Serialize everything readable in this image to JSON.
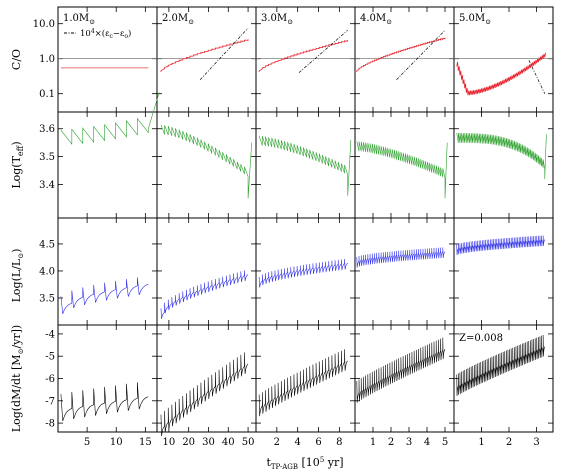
{
  "figure": {
    "xlabel": "t",
    "xlabel_sub": "TP-AGB",
    "xlabel_units": "[10",
    "xlabel_exp": "5",
    "xlabel_tail": " yr]"
  },
  "colors": {
    "co": "#e8202a",
    "co_15": "#f08080",
    "teff": "#2ca02c",
    "lum": "#2a2ae8",
    "mdot": "#000000",
    "eps": "#000000",
    "ref_line": "#666666"
  },
  "columns": [
    {
      "mass": "1.0",
      "ticks": [
        5,
        10,
        15
      ],
      "xlim": [
        0,
        17
      ]
    },
    {
      "mass": "2.0",
      "ticks": [
        10,
        20,
        30,
        40,
        50
      ],
      "xlim": [
        4,
        54
      ]
    },
    {
      "mass": "3.0",
      "ticks": [
        2,
        4,
        6,
        8
      ],
      "xlim": [
        0,
        9.5
      ]
    },
    {
      "mass": "4.0",
      "ticks": [
        1,
        2,
        3,
        4,
        5
      ],
      "xlim": [
        0,
        5.5
      ]
    },
    {
      "mass": "5.0",
      "ticks": [
        1,
        2,
        3
      ],
      "xlim": [
        0,
        3.6
      ]
    }
  ],
  "mass_unit": "M",
  "rows": [
    {
      "key": "co",
      "ylabel": "C/O",
      "scale": "log",
      "ylim": [
        0.03,
        30
      ],
      "ticks": [
        "10.0",
        "1.0",
        "0.1"
      ],
      "tick_values": [
        10,
        1,
        0.1
      ],
      "ref_line": 1.0,
      "legend_eps": "10",
      "legend_eps_exp": "4",
      "legend_eps_tail": "×(ε",
      "legend_eps_sub1": "c",
      "legend_eps_mid": "−ε",
      "legend_eps_sub2": "o",
      "legend_close": ")"
    },
    {
      "key": "teff",
      "ylabel_main": "Log(T",
      "ylabel_sub": "eff",
      "ylabel_close": ")",
      "scale": "linear",
      "ylim": [
        3.28,
        3.66
      ],
      "ticks": [
        "3.6",
        "3.5",
        "3.4"
      ],
      "tick_values": [
        3.6,
        3.5,
        3.4
      ]
    },
    {
      "key": "lum",
      "ylabel_main": "Log(L/L",
      "ylabel_close": ")",
      "scale": "linear",
      "ylim": [
        3.0,
        4.98
      ],
      "ticks": [
        "4.5",
        "4.0",
        "3.5"
      ],
      "tick_values": [
        4.5,
        4.0,
        3.5
      ]
    },
    {
      "key": "mdot",
      "ylabel_main": "Log(dM/dt [M",
      "ylabel_close": "/yr])",
      "scale": "linear",
      "ylim": [
        -8.4,
        -3.6
      ],
      "ticks": [
        "-4",
        "-5",
        "-6",
        "-7",
        "-8"
      ],
      "tick_values": [
        -4,
        -5,
        -6,
        -7,
        -8
      ],
      "annotation": "Z=0.008"
    }
  ],
  "chart_data": {
    "type": "line",
    "xlabel": "t_TP-AGB [10^5 yr]",
    "panels_x_unit": "10^5 yr",
    "panels": [
      {
        "mass": "1.0",
        "co_start": 0.55,
        "co_end": 0.55,
        "teff_start": 3.56,
        "teff_end": 3.55,
        "lum_start": 3.35,
        "lum_end": 3.73,
        "mdot_start": -7.3,
        "mdot_end": -6.7,
        "pulses": 8,
        "tstart": 0.5,
        "tend": 15.5
      },
      {
        "mass": "2.0",
        "co_start": 0.45,
        "co_end": 3.6,
        "eps_start": 0.25,
        "eps_end": 7.5,
        "teff_start": 3.59,
        "teff_end": 3.37,
        "lum_start": 3.2,
        "lum_end": 3.92,
        "mdot_start": -8.1,
        "mdot_end": -5.2,
        "pulses": 24,
        "tstart": 6,
        "tend": 50
      },
      {
        "mass": "3.0",
        "co_start": 0.45,
        "co_end": 3.4,
        "eps_start": 0.4,
        "eps_end": 6.5,
        "teff_start": 3.55,
        "teff_end": 3.38,
        "lum_start": 3.78,
        "lum_end": 4.12,
        "mdot_start": -7.2,
        "mdot_end": -5.1,
        "pulses": 28,
        "tstart": 0.3,
        "tend": 8.8
      },
      {
        "mass": "4.0",
        "co_start": 0.45,
        "co_end": 4.0,
        "eps_start": 0.25,
        "eps_end": 6.5,
        "teff_start": 3.53,
        "teff_end": 3.37,
        "lum_start": 4.15,
        "lum_end": 4.33,
        "mdot_start": -6.6,
        "mdot_end": -4.6,
        "pulses": 40,
        "tstart": 0.1,
        "tend": 5.0
      },
      {
        "mass": "5.0",
        "co_start": 0.6,
        "co_min": 0.09,
        "co_end": 1.1,
        "eps_start": 0.9,
        "eps_end": 0.1,
        "teff_start": 3.56,
        "teff_end": 3.44,
        "lum_start": 4.38,
        "lum_end": 4.55,
        "mdot_start": -6.3,
        "mdot_end": -4.5,
        "pulses": 55,
        "tstart": 0.1,
        "tend": 3.3
      }
    ]
  }
}
